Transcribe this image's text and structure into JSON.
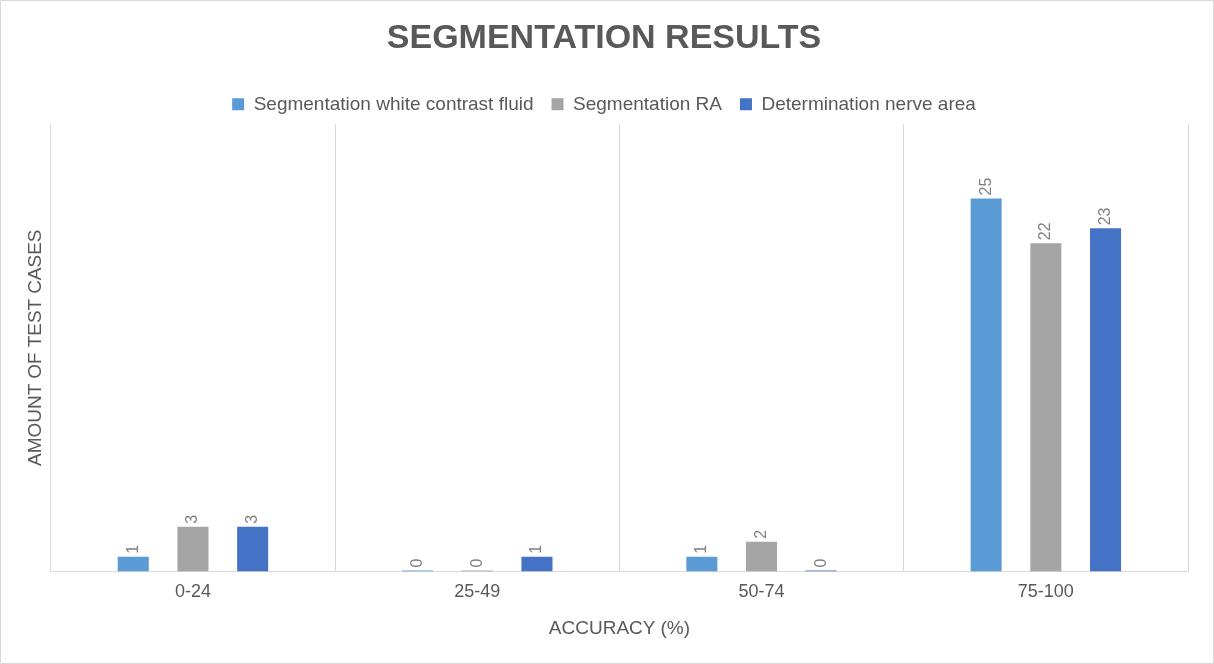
{
  "chart_data": {
    "type": "bar",
    "title": "SEGMENTATION RESULTS",
    "xlabel": "ACCURACY (%)",
    "ylabel": "AMOUNT OF TEST CASES",
    "categories": [
      "0-24",
      "25-49",
      "50-74",
      "75-100"
    ],
    "series": [
      {
        "name": "Segmentation white contrast fluid",
        "color": "#5b9bd5",
        "values": [
          1,
          0,
          1,
          25
        ]
      },
      {
        "name": "Segmentation RA",
        "color": "#a5a5a5",
        "values": [
          3,
          0,
          2,
          22
        ]
      },
      {
        "name": "Determination nerve area",
        "color": "#4472c4",
        "values": [
          3,
          1,
          0,
          23
        ]
      }
    ],
    "data_labels": true,
    "grid": "x",
    "legend": "top"
  }
}
